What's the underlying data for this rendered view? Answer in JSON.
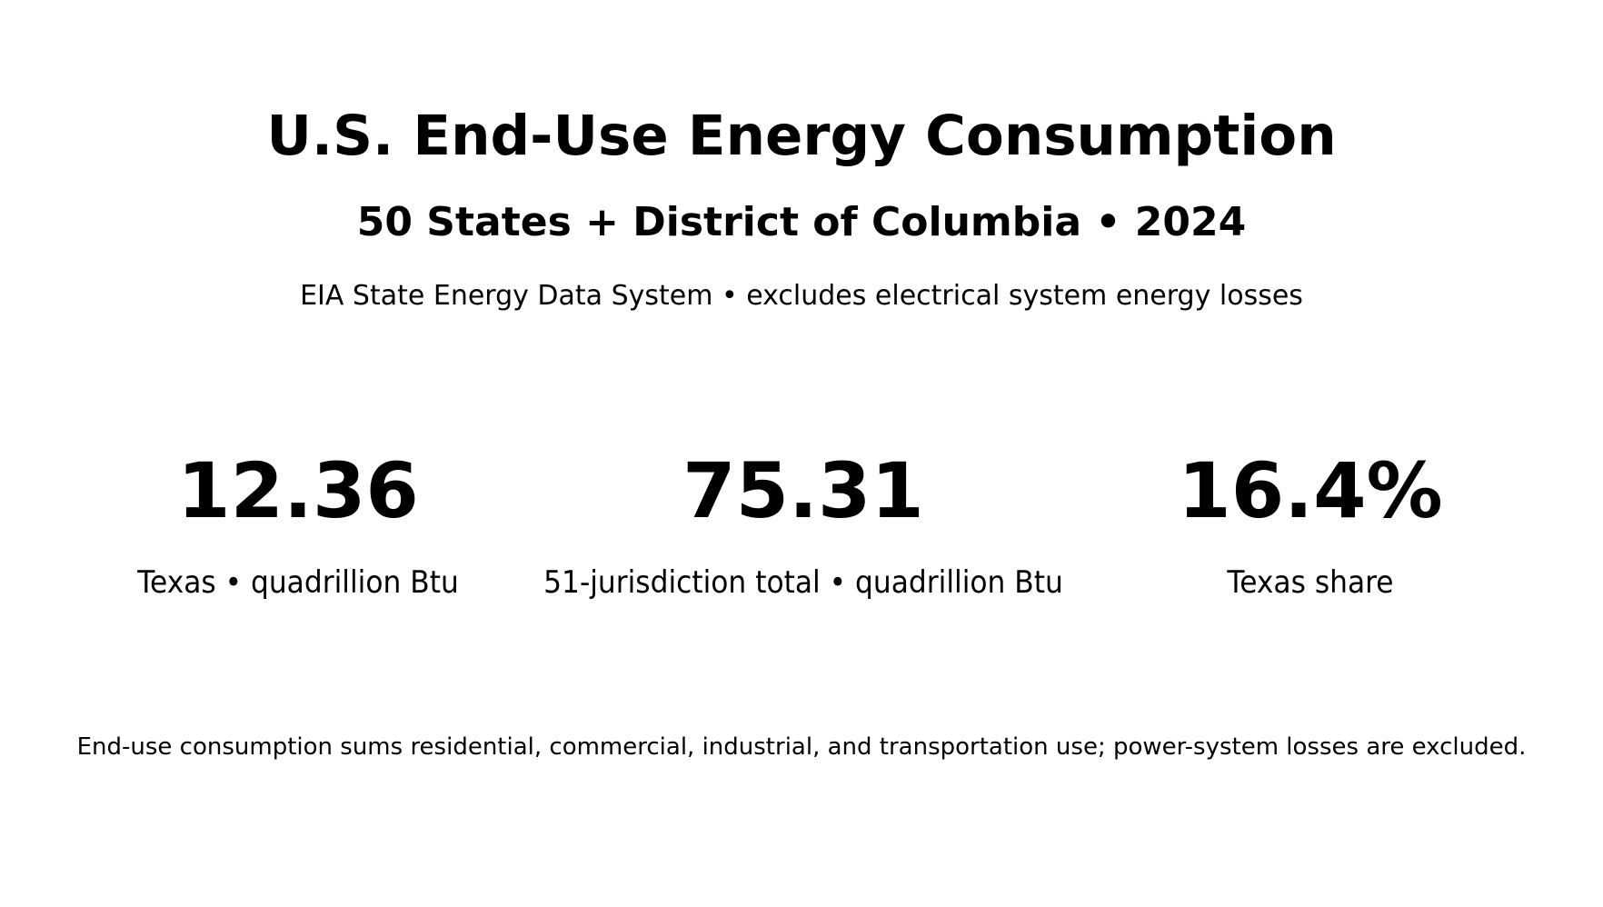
{
  "header": {
    "title": "U.S. End-Use Energy Consumption",
    "subtitle": "50 States + District of Columbia • 2024",
    "source": "EIA State Energy Data System • excludes electrical system energy losses"
  },
  "kpis": [
    {
      "value": "12.36",
      "label": "Texas • quadrillion Btu"
    },
    {
      "value": "75.31",
      "label": "51-jurisdiction total • quadrillion Btu"
    },
    {
      "value": "16.4%",
      "label": "Texas share"
    }
  ],
  "footer": {
    "note": "End-use consumption sums residential, commercial, industrial, and transportation use; power-system losses are excluded."
  }
}
